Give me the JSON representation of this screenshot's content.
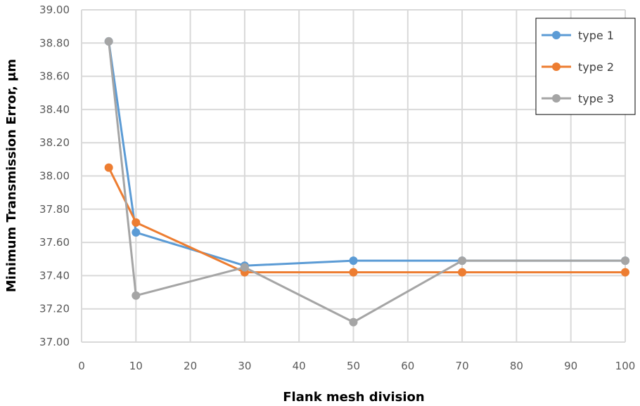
{
  "chart_data": {
    "type": "line",
    "title": "",
    "xlabel": "Flank mesh division",
    "ylabel": "Minimum Transmission Error, μm",
    "xlim": [
      0,
      100
    ],
    "ylim": [
      37.0,
      39.0
    ],
    "xticks": [
      0,
      10,
      20,
      30,
      40,
      50,
      60,
      70,
      80,
      90,
      100
    ],
    "yticks": [
      "37.00",
      "37.20",
      "37.40",
      "37.60",
      "37.80",
      "38.00",
      "38.20",
      "38.40",
      "38.60",
      "38.80",
      "39.00"
    ],
    "grid": true,
    "legend_position": "top-right",
    "x": [
      5,
      10,
      30,
      50,
      70,
      100
    ],
    "series": [
      {
        "name": "type 1",
        "color": "#5B9BD5",
        "values": [
          38.81,
          37.66,
          37.46,
          37.49,
          37.49,
          37.49
        ]
      },
      {
        "name": "type 2",
        "color": "#ED7D31",
        "values": [
          38.05,
          37.72,
          37.42,
          37.42,
          37.42,
          37.42
        ]
      },
      {
        "name": "type 3",
        "color": "#A5A5A5",
        "values": [
          38.81,
          37.28,
          37.45,
          37.12,
          37.49,
          37.49
        ]
      }
    ]
  }
}
